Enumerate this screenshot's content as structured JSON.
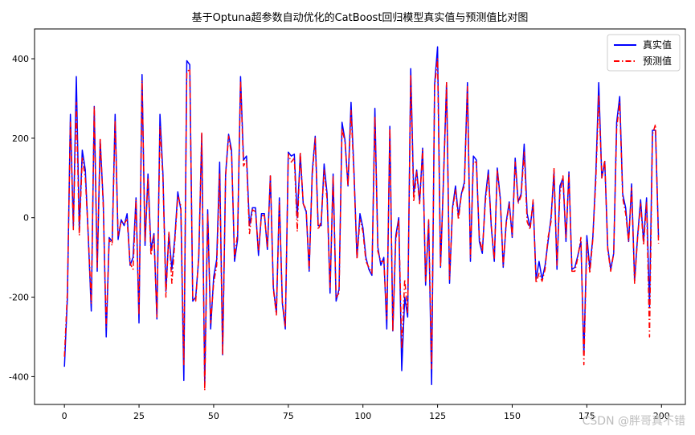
{
  "chart_data": {
    "type": "line",
    "title": "基于Optuna超参数自动优化的CatBoost回归模型真实值与预测值比对图",
    "xlabel": "",
    "ylabel": "",
    "xlim": [
      -10,
      208
    ],
    "ylim": [
      -470,
      475
    ],
    "x_ticks": [
      0,
      25,
      50,
      75,
      100,
      125,
      150,
      175,
      200
    ],
    "y_ticks": [
      -400,
      -200,
      0,
      200,
      400
    ],
    "legend_position": "upper right",
    "grid": false,
    "series": [
      {
        "name": "真实值",
        "color": "#0000ff",
        "style": "solid",
        "values": [
          -375,
          -200,
          260,
          -25,
          355,
          -30,
          170,
          120,
          -50,
          -235,
          280,
          -135,
          195,
          40,
          -300,
          -50,
          -60,
          260,
          -55,
          -5,
          -20,
          10,
          -120,
          -100,
          50,
          -265,
          360,
          -70,
          110,
          -80,
          -40,
          -255,
          260,
          110,
          -185,
          -40,
          -130,
          -50,
          65,
          20,
          -410,
          395,
          385,
          -210,
          -200,
          -100,
          210,
          -420,
          20,
          -280,
          -150,
          -105,
          140,
          -345,
          110,
          210,
          170,
          -110,
          -55,
          355,
          145,
          155,
          -20,
          25,
          25,
          -95,
          10,
          10,
          -80,
          105,
          -175,
          -240,
          50,
          -215,
          -280,
          165,
          155,
          160,
          0,
          160,
          35,
          15,
          -135,
          115,
          205,
          -20,
          -20,
          135,
          60,
          -190,
          110,
          -210,
          -180,
          240,
          195,
          80,
          290,
          115,
          -100,
          10,
          -25,
          -100,
          -130,
          -145,
          275,
          -75,
          -120,
          -100,
          -280,
          230,
          -285,
          -45,
          0,
          -385,
          -200,
          -250,
          375,
          60,
          120,
          40,
          175,
          -170,
          -10,
          -420,
          335,
          430,
          -125,
          100,
          340,
          -165,
          25,
          80,
          5,
          60,
          90,
          340,
          -110,
          155,
          145,
          -60,
          -90,
          50,
          120,
          -25,
          -110,
          125,
          50,
          -125,
          -10,
          40,
          -50,
          150,
          40,
          60,
          185,
          10,
          -25,
          40,
          -155,
          -110,
          -155,
          -120,
          -60,
          0,
          115,
          -130,
          80,
          100,
          -60,
          115,
          -130,
          -125,
          -95,
          -60,
          -345,
          -45,
          -130,
          -50,
          105,
          340,
          100,
          140,
          -75,
          -130,
          -90,
          240,
          305,
          60,
          25,
          -60,
          85,
          -160,
          -45,
          45,
          -60,
          50,
          -225,
          220,
          220,
          -50
        ]
      },
      {
        "name": "预测值",
        "color": "#ff0000",
        "style": "dashdot",
        "values": [
          -350,
          -185,
          240,
          -30,
          290,
          -45,
          150,
          100,
          -45,
          -215,
          280,
          -125,
          200,
          30,
          -275,
          -55,
          -70,
          245,
          -45,
          -10,
          -15,
          -5,
          -115,
          -130,
          45,
          -245,
          345,
          -60,
          100,
          -95,
          -45,
          -250,
          230,
          100,
          -200,
          -35,
          -165,
          -60,
          55,
          30,
          -370,
          365,
          375,
          -205,
          -210,
          -95,
          215,
          -435,
          10,
          -265,
          -165,
          -120,
          110,
          -345,
          105,
          205,
          160,
          -100,
          -40,
          345,
          130,
          145,
          -40,
          20,
          15,
          -85,
          5,
          5,
          -75,
          105,
          -180,
          -245,
          40,
          -210,
          -275,
          160,
          140,
          150,
          -35,
          165,
          35,
          20,
          -130,
          105,
          200,
          -30,
          -10,
          120,
          45,
          -175,
          105,
          -200,
          -190,
          225,
          190,
          80,
          270,
          105,
          -105,
          -5,
          -35,
          -110,
          -125,
          -140,
          255,
          -85,
          -110,
          -110,
          -255,
          225,
          -285,
          -55,
          -5,
          -330,
          -155,
          -240,
          360,
          40,
          115,
          35,
          170,
          -160,
          -5,
          -380,
          330,
          400,
          -125,
          95,
          340,
          -155,
          20,
          70,
          -5,
          60,
          80,
          330,
          -100,
          140,
          140,
          -50,
          -85,
          40,
          110,
          -20,
          -105,
          120,
          45,
          -120,
          -15,
          35,
          -45,
          140,
          35,
          55,
          165,
          -10,
          -30,
          45,
          -165,
          -140,
          -160,
          -130,
          -50,
          -10,
          125,
          -120,
          60,
          105,
          -50,
          110,
          -135,
          -135,
          -100,
          -50,
          -370,
          -60,
          -140,
          -55,
          90,
          310,
          100,
          145,
          -80,
          -135,
          -90,
          225,
          290,
          50,
          10,
          -60,
          75,
          -165,
          -50,
          35,
          -70,
          40,
          -300,
          210,
          235,
          -65
        ]
      }
    ]
  },
  "watermark": "CSDN @胖哥真不错"
}
